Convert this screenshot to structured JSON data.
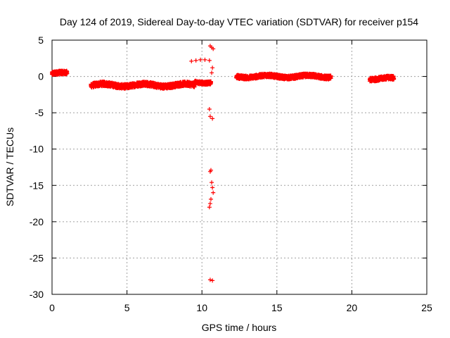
{
  "chart_data": {
    "type": "scatter",
    "title": "Day 124 of 2019, Sidereal Day-to-day VTEC variation (SDTVAR) for receiver p154",
    "xlabel": "GPS time / hours",
    "ylabel": "SDTVAR / TECUs",
    "xlim": [
      0,
      25
    ],
    "ylim": [
      -30,
      5
    ],
    "x_ticks": [
      0,
      5,
      10,
      15,
      20,
      25
    ],
    "y_ticks": [
      5,
      0,
      -5,
      -10,
      -15,
      -20,
      -25,
      -30
    ],
    "grid": true,
    "marker": "plus",
    "color": "#ff0000",
    "series": [
      {
        "name": "SDTVAR",
        "segments": [
          {
            "x_start": 0.0,
            "x_end": 1.0,
            "y_mean": 0.4,
            "spread": 0.5
          },
          {
            "x_start": 2.6,
            "x_end": 9.5,
            "y_mean": -1.2,
            "spread": 0.6
          },
          {
            "x_start": 9.5,
            "x_end": 10.6,
            "y_mean": -0.8,
            "spread": 0.4
          },
          {
            "x_start": 12.3,
            "x_end": 18.6,
            "y_mean": 0.0,
            "spread": 0.5
          },
          {
            "x_start": 21.2,
            "x_end": 22.8,
            "y_mean": -0.3,
            "spread": 0.5
          }
        ],
        "points": [
          [
            9.3,
            2.1
          ],
          [
            9.6,
            2.2
          ],
          [
            9.9,
            2.3
          ],
          [
            10.2,
            2.3
          ],
          [
            10.5,
            2.2
          ],
          [
            10.55,
            4.2
          ],
          [
            10.65,
            4.0
          ],
          [
            10.75,
            3.8
          ],
          [
            10.7,
            1.2
          ],
          [
            10.65,
            0.5
          ],
          [
            10.5,
            -4.5
          ],
          [
            10.55,
            -5.5
          ],
          [
            10.7,
            -5.8
          ],
          [
            10.55,
            -13.1
          ],
          [
            10.6,
            -12.9
          ],
          [
            10.65,
            -14.6
          ],
          [
            10.7,
            -15.3
          ],
          [
            10.75,
            -16.0
          ],
          [
            10.6,
            -16.9
          ],
          [
            10.55,
            -17.5
          ],
          [
            10.5,
            -18.0
          ],
          [
            10.55,
            -28.0
          ],
          [
            10.7,
            -28.1
          ]
        ]
      }
    ]
  }
}
